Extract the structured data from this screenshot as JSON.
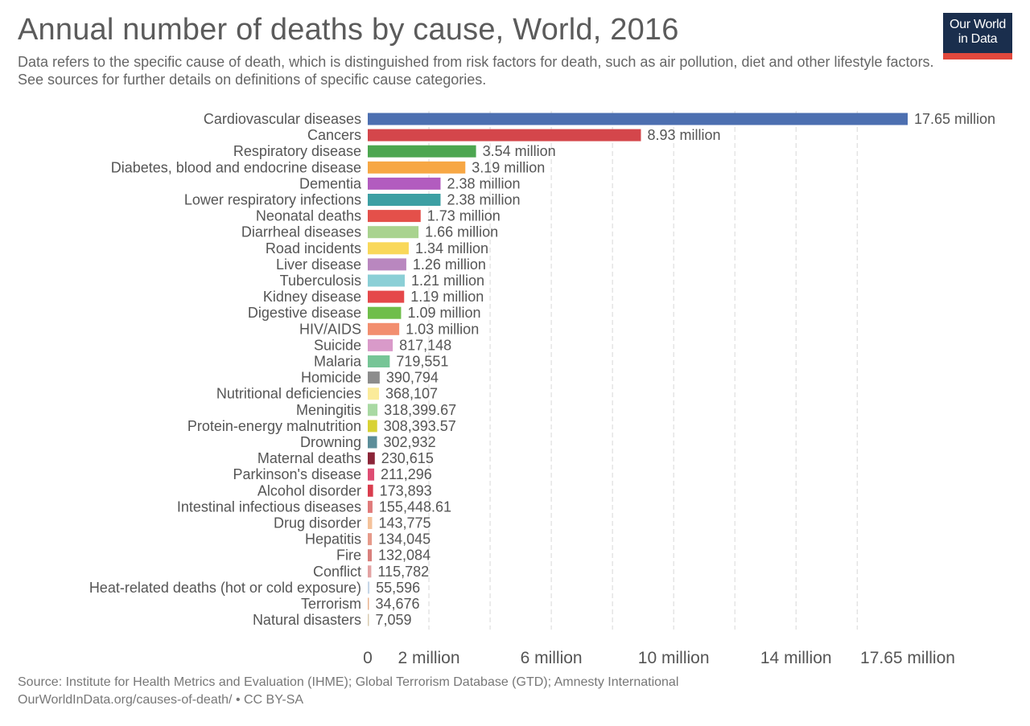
{
  "header": {
    "title": "Annual number of deaths by cause, World, 2016",
    "subtitle": "Data refers to the specific cause of death, which is distinguished from risk factors for death, such as air pollution, diet and other lifestyle factors. See sources for further details on definitions of specific cause categories."
  },
  "logo": {
    "line1": "Our World",
    "line2": "in Data"
  },
  "footer": {
    "source": "Source: Institute for Health Metrics and Evaluation (IHME); Global Terrorism Database (GTD); Amnesty International",
    "url_license": "OurWorldInData.org/causes-of-death/ • CC BY-SA"
  },
  "colors": {
    "logo_bg": "#1a2e4d",
    "logo_strip": "#e1483d"
  },
  "chart_data": {
    "type": "bar",
    "orientation": "horizontal",
    "title": "Annual number of deaths by cause, World, 2016",
    "xlim": [
      0,
      17650000
    ],
    "x_ticks": [
      {
        "value": 0,
        "label": "0"
      },
      {
        "value": 2000000,
        "label": "2 million"
      },
      {
        "value": 6000000,
        "label": "6 million"
      },
      {
        "value": 10000000,
        "label": "10 million"
      },
      {
        "value": 14000000,
        "label": "14 million"
      },
      {
        "value": 17650000,
        "label": "17.65 million"
      }
    ],
    "gridlines": [
      2000000,
      4000000,
      6000000,
      8000000,
      10000000,
      12000000,
      14000000,
      16000000
    ],
    "bars": [
      {
        "category": "Cardiovascular diseases",
        "value": 17650000,
        "label": "17.65 million",
        "color": "#4c6fb0"
      },
      {
        "category": "Cancers",
        "value": 8930000,
        "label": "8.93 million",
        "color": "#d4464b"
      },
      {
        "category": "Respiratory disease",
        "value": 3540000,
        "label": "3.54 million",
        "color": "#4ca650"
      },
      {
        "category": "Diabetes, blood and endocrine disease",
        "value": 3190000,
        "label": "3.19 million",
        "color": "#f7a744"
      },
      {
        "category": "Dementia",
        "value": 2380000,
        "label": "2.38 million",
        "color": "#b25cbf"
      },
      {
        "category": "Lower respiratory infections",
        "value": 2380000,
        "label": "2.38 million",
        "color": "#3c9fa3"
      },
      {
        "category": "Neonatal deaths",
        "value": 1730000,
        "label": "1.73 million",
        "color": "#e4504a"
      },
      {
        "category": "Diarrheal diseases",
        "value": 1660000,
        "label": "1.66 million",
        "color": "#a9d38f"
      },
      {
        "category": "Road incidents",
        "value": 1340000,
        "label": "1.34 million",
        "color": "#f9d85a"
      },
      {
        "category": "Liver disease",
        "value": 1260000,
        "label": "1.26 million",
        "color": "#b987bf"
      },
      {
        "category": "Tuberculosis",
        "value": 1210000,
        "label": "1.21 million",
        "color": "#8bcfd6"
      },
      {
        "category": "Kidney disease",
        "value": 1190000,
        "label": "1.19 million",
        "color": "#e5484a"
      },
      {
        "category": "Digestive disease",
        "value": 1090000,
        "label": "1.09 million",
        "color": "#6fbe4a"
      },
      {
        "category": "HIV/AIDS",
        "value": 1030000,
        "label": "1.03 million",
        "color": "#f28e6f"
      },
      {
        "category": "Suicide",
        "value": 817148,
        "label": "817,148",
        "color": "#d99ac9"
      },
      {
        "category": "Malaria",
        "value": 719551,
        "label": "719,551",
        "color": "#76c596"
      },
      {
        "category": "Homicide",
        "value": 390794,
        "label": "390,794",
        "color": "#8c8c8c"
      },
      {
        "category": "Nutritional deficiencies",
        "value": 368107,
        "label": "368,107",
        "color": "#fbeb9a"
      },
      {
        "category": "Meningitis",
        "value": 318399.67,
        "label": "318,399.67",
        "color": "#a9d9a3"
      },
      {
        "category": "Protein-energy malnutrition",
        "value": 308393.57,
        "label": "308,393.57",
        "color": "#d8d234"
      },
      {
        "category": "Drowning",
        "value": 302932,
        "label": "302,932",
        "color": "#5b8d99"
      },
      {
        "category": "Maternal deaths",
        "value": 230615,
        "label": "230,615",
        "color": "#8b2538"
      },
      {
        "category": "Parkinson's disease",
        "value": 211296,
        "label": "211,296",
        "color": "#de4d73"
      },
      {
        "category": "Alcohol disorder",
        "value": 173893,
        "label": "173,893",
        "color": "#d93d4e"
      },
      {
        "category": "Intestinal infectious diseases",
        "value": 155448.61,
        "label": "155,448.61",
        "color": "#e07a7a"
      },
      {
        "category": "Drug disorder",
        "value": 143775,
        "label": "143,775",
        "color": "#f4c29a"
      },
      {
        "category": "Hepatitis",
        "value": 134045,
        "label": "134,045",
        "color": "#e69a8a"
      },
      {
        "category": "Fire",
        "value": 132084,
        "label": "132,084",
        "color": "#d9807c"
      },
      {
        "category": "Conflict",
        "value": 115782,
        "label": "115,782",
        "color": "#e3a3a3"
      },
      {
        "category": "Heat-related deaths (hot or cold exposure)",
        "value": 55596,
        "label": "55,596",
        "color": "#c6d6e6"
      },
      {
        "category": "Terrorism",
        "value": 34676,
        "label": "34,676",
        "color": "#e8b38f"
      },
      {
        "category": "Natural disasters",
        "value": 7059,
        "label": "7,059",
        "color": "#d9cbb0"
      }
    ]
  }
}
